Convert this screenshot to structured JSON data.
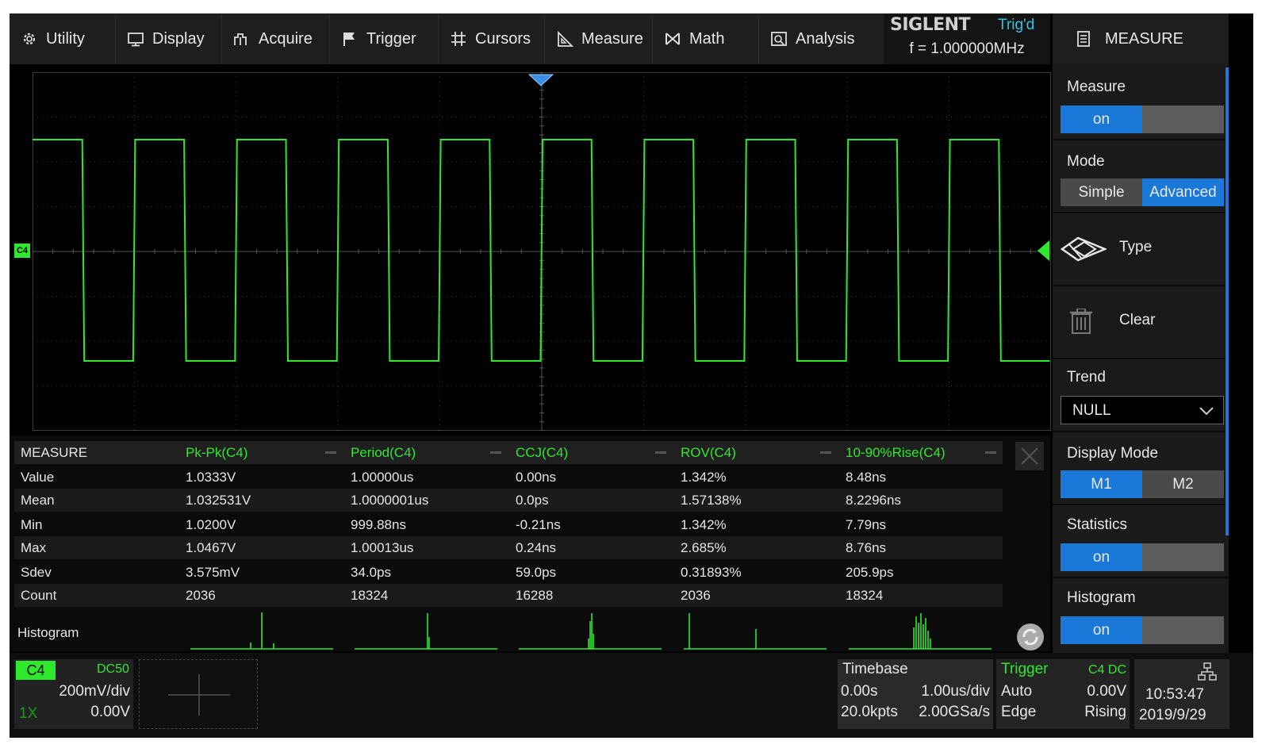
{
  "menu": {
    "items": [
      {
        "label": "Utility",
        "icon": "gear-icon"
      },
      {
        "label": "Display",
        "icon": "monitor-icon"
      },
      {
        "label": "Acquire",
        "icon": "acquire-icon"
      },
      {
        "label": "Trigger",
        "icon": "flag-icon"
      },
      {
        "label": "Cursors",
        "icon": "crosshair-icon"
      },
      {
        "label": "Measure",
        "icon": "ruler-icon"
      },
      {
        "label": "Math",
        "icon": "math-icon"
      },
      {
        "label": "Analysis",
        "icon": "analysis-icon"
      }
    ]
  },
  "brand": {
    "logo": "SIGLENT",
    "trig_state": "Trig'd",
    "frequency": "f = 1.000000MHz"
  },
  "right_panel": {
    "title": "MEASURE",
    "measure": {
      "label": "Measure",
      "value": "on"
    },
    "mode": {
      "label": "Mode",
      "options": [
        "Simple",
        "Advanced"
      ],
      "selected": "Advanced"
    },
    "type": {
      "label": "Type",
      "icon": "measure-type-icon"
    },
    "clear": {
      "label": "Clear",
      "icon": "trash-icon"
    },
    "trend": {
      "label": "Trend",
      "value": "NULL"
    },
    "display_mode": {
      "label": "Display Mode",
      "options": [
        "M1",
        "M2"
      ],
      "selected": "M1"
    },
    "statistics": {
      "label": "Statistics",
      "value": "on"
    },
    "histogram": {
      "label": "Histogram",
      "value": "on"
    }
  },
  "waveform": {
    "channel_marker": "C4",
    "color": "#2ee82e",
    "frequency_mhz": 1.0,
    "time_per_div_us": 1.0,
    "cycles_visible": 10
  },
  "measure_table": {
    "header": "MEASURE",
    "columns": [
      "Pk-Pk(C4)",
      "Period(C4)",
      "CCJ(C4)",
      "ROV(C4)",
      "10-90%Rise(C4)"
    ],
    "rows": [
      {
        "label": "Value",
        "values": [
          "1.0333V",
          "1.00000us",
          "0.00ns",
          "1.342%",
          "8.48ns"
        ]
      },
      {
        "label": "Mean",
        "values": [
          "1.032531V",
          "1.0000001us",
          "0.0ps",
          "1.57138%",
          "8.2296ns"
        ]
      },
      {
        "label": "Min",
        "values": [
          "1.0200V",
          "999.88ns",
          "-0.21ns",
          "1.342%",
          "7.79ns"
        ]
      },
      {
        "label": "Max",
        "values": [
          "1.0467V",
          "1.00013us",
          "0.24ns",
          "2.685%",
          "8.76ns"
        ]
      },
      {
        "label": "Sdev",
        "values": [
          "3.575mV",
          "34.0ps",
          "59.0ps",
          "0.31893%",
          "205.9ps"
        ]
      },
      {
        "label": "Count",
        "values": [
          "2036",
          "18324",
          "16288",
          "2036",
          "18324"
        ]
      }
    ],
    "histogram_label": "Histogram"
  },
  "status": {
    "channel": {
      "name": "C4",
      "coupling": "DC50",
      "scale": "200mV/div",
      "probe": "1X",
      "offset": "0.00V"
    },
    "timebase": {
      "label": "Timebase",
      "delay": "0.00s",
      "scale": "1.00us/div",
      "memory": "20.0kpts",
      "sample_rate": "2.00GSa/s"
    },
    "trigger": {
      "label": "Trigger",
      "source": "C4 DC",
      "mode": "Auto",
      "level": "0.00V",
      "type": "Edge",
      "slope": "Rising"
    },
    "clock": {
      "time": "10:53:47",
      "date": "2019/9/29"
    }
  }
}
